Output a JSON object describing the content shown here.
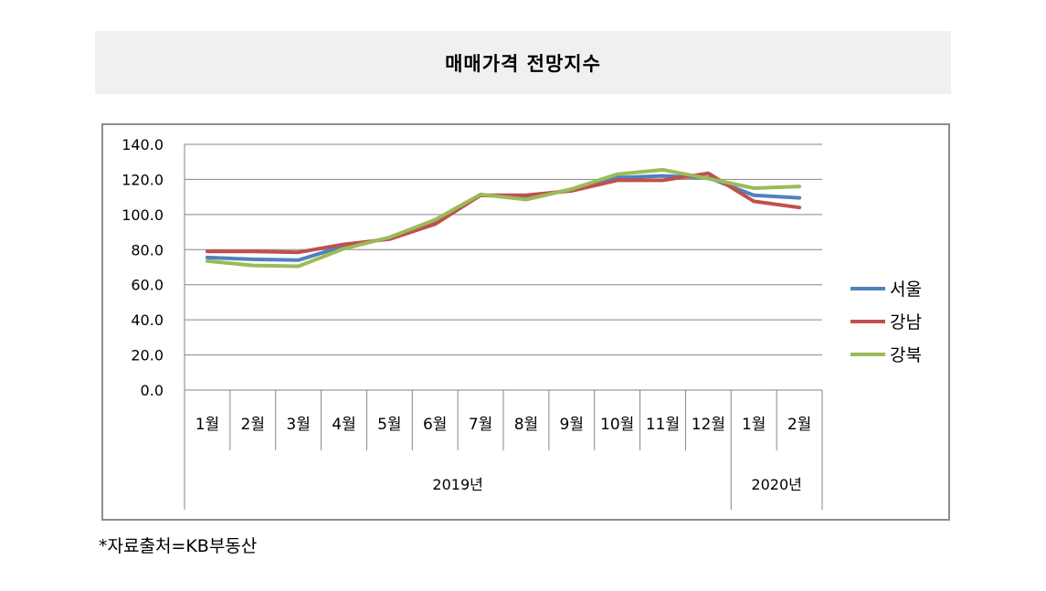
{
  "header": {
    "title": "매매가격 전망지수"
  },
  "footer": {
    "source": "*자료출처=KB부동산"
  },
  "chart_data": {
    "type": "line",
    "title": "매매가격 전망지수",
    "categories": [
      "1월",
      "2월",
      "3월",
      "4월",
      "5월",
      "6월",
      "7월",
      "8월",
      "9월",
      "10월",
      "11월",
      "12월",
      "1월",
      "2월"
    ],
    "year_groups": [
      {
        "label": "2019년",
        "count": 12
      },
      {
        "label": "2020년",
        "count": 2
      }
    ],
    "ylim": [
      0,
      140
    ],
    "yticks": [
      "0.0",
      "20.0",
      "40.0",
      "60.0",
      "80.0",
      "100.0",
      "120.0",
      "140.0"
    ],
    "ytick_values": [
      0,
      20,
      40,
      60,
      80,
      100,
      120,
      140
    ],
    "grid": true,
    "legend_position": "right",
    "series": [
      {
        "name": "서울",
        "color": "#4f81bd",
        "values": [
          75.5,
          74.5,
          74.0,
          82.0,
          86.5,
          95.5,
          111.0,
          110.0,
          114.0,
          121.0,
          122.0,
          121.0,
          111.0,
          109.5
        ]
      },
      {
        "name": "강남",
        "color": "#c0504d",
        "values": [
          79.0,
          79.0,
          78.5,
          83.0,
          86.0,
          94.5,
          111.0,
          111.0,
          113.5,
          119.5,
          119.5,
          123.5,
          107.5,
          104.0
        ]
      },
      {
        "name": "강북",
        "color": "#9bbb59",
        "values": [
          73.5,
          71.0,
          70.5,
          80.5,
          87.0,
          97.0,
          111.5,
          108.5,
          114.5,
          123.0,
          125.5,
          120.5,
          115.0,
          116.0
        ]
      }
    ]
  }
}
